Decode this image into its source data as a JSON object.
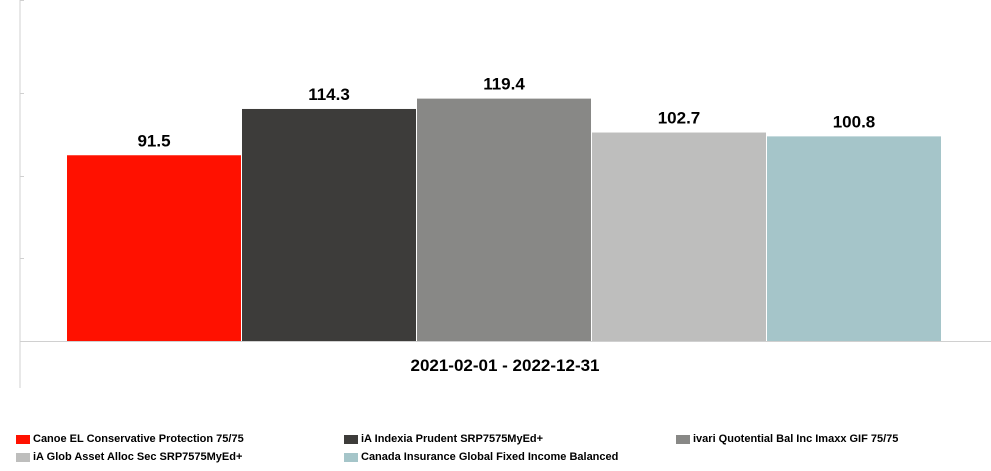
{
  "chart_data": {
    "type": "bar",
    "categories": [
      "2021-02-01 - 2022-12-31"
    ],
    "series": [
      {
        "name": "Canoe EL Conservative Protection 75/75",
        "values": [
          91.5
        ],
        "color": "#ff1100"
      },
      {
        "name": "iA Indexia Prudent SRP7575MyEd+",
        "values": [
          114.3
        ],
        "color": "#3d3c3a"
      },
      {
        "name": "ivari Quotential Bal Inc Imaxx GIF 75/75",
        "values": [
          119.4
        ],
        "color": "#888886"
      },
      {
        "name": "iA Glob Asset Alloc Sec SRP7575MyEd+",
        "values": [
          102.7
        ],
        "color": "#bebebd"
      },
      {
        "name": "Canada Insurance Global Fixed Income Balanced",
        "values": [
          100.8
        ],
        "color": "#a5c5c9"
      }
    ],
    "title": "",
    "xlabel": "",
    "ylabel": "",
    "ylim": [
      0,
      120
    ],
    "grid": false,
    "legend_position": "bottom"
  }
}
